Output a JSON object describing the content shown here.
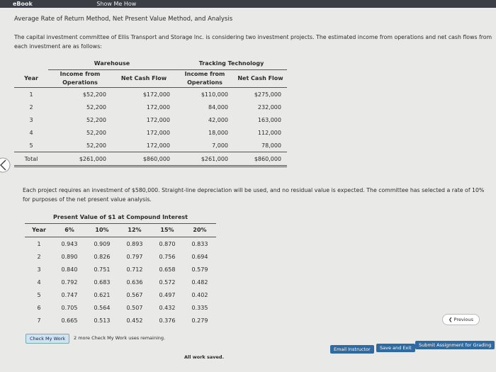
{
  "top_bar": {
    "tabs": [
      "eBook",
      "Show Me How"
    ]
  },
  "heading": "Average Rate of Return Method, Net Present Value Method, and Analysis",
  "intro": "The capital investment committee of Ellis Transport and Storage Inc. is considering two investment projects. The estimated income from operations and net cash flows from each investment are as follows:",
  "table": {
    "groups": [
      "Warehouse",
      "Tracking Technology"
    ],
    "header": [
      "Year",
      "Income from Operations",
      "Net Cash Flow",
      "Income from Operations",
      "Net Cash Flow"
    ],
    "rows": [
      [
        "1",
        "$52,200",
        "$172,000",
        "$110,000",
        "$275,000"
      ],
      [
        "2",
        "52,200",
        "172,000",
        "84,000",
        "232,000"
      ],
      [
        "3",
        "52,200",
        "172,000",
        "42,000",
        "163,000"
      ],
      [
        "4",
        "52,200",
        "172,000",
        "18,000",
        "112,000"
      ],
      [
        "5",
        "52,200",
        "172,000",
        "7,000",
        "78,000"
      ],
      [
        "Total",
        "$261,000",
        "$860,000",
        "$261,000",
        "$860,000"
      ]
    ]
  },
  "note": "Each project requires an investment of $580,000. Straight-line depreciation will be used, and no residual value is expected. The committee has selected a rate of 10% for purposes of the net present value analysis.",
  "pv_table": {
    "title": "Present Value of $1 at Compound Interest",
    "header": [
      "Year",
      "6%",
      "10%",
      "12%",
      "15%",
      "20%"
    ],
    "rows": [
      [
        "1",
        "0.943",
        "0.909",
        "0.893",
        "0.870",
        "0.833"
      ],
      [
        "2",
        "0.890",
        "0.826",
        "0.797",
        "0.756",
        "0.694"
      ],
      [
        "3",
        "0.840",
        "0.751",
        "0.712",
        "0.658",
        "0.579"
      ],
      [
        "4",
        "0.792",
        "0.683",
        "0.636",
        "0.572",
        "0.482"
      ],
      [
        "5",
        "0.747",
        "0.621",
        "0.567",
        "0.497",
        "0.402"
      ],
      [
        "6",
        "0.705",
        "0.564",
        "0.507",
        "0.432",
        "0.335"
      ],
      [
        "7",
        "0.665",
        "0.513",
        "0.452",
        "0.376",
        "0.279"
      ]
    ]
  },
  "footer": {
    "check_button": "Check My Work",
    "check_note": "2 more Check My Work uses remaining.",
    "previous": "Previous",
    "buttons": [
      "Email Instructor",
      "Save and Exit",
      "Submit Assignment for Grading"
    ],
    "status": "All work saved."
  }
}
